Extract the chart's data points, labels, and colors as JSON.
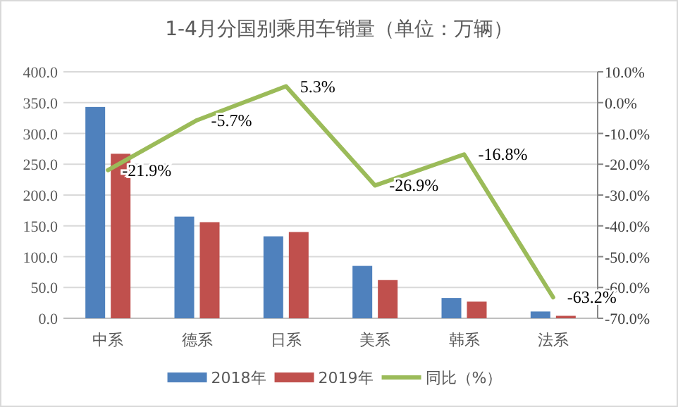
{
  "chart_data": {
    "type": "bar",
    "title": "1-4月分国别乘用车销量（单位：万辆）",
    "categories": [
      "中系",
      "德系",
      "日系",
      "美系",
      "韩系",
      "法系"
    ],
    "series": [
      {
        "name": "2018年",
        "color": "#4f81bd",
        "values": [
          343,
          165,
          133,
          85,
          33,
          11
        ]
      },
      {
        "name": "2019年",
        "color": "#c0504d",
        "values": [
          267,
          156,
          140,
          62,
          27,
          4
        ]
      },
      {
        "name": "同比（%）",
        "type": "line",
        "axis": "y2",
        "color": "#9bbb59",
        "values": [
          -21.9,
          -5.7,
          5.3,
          -26.9,
          -16.8,
          -63.2
        ],
        "value_labels": [
          "-21.9%",
          "-5.7%",
          "5.3%",
          "-26.9%",
          "-16.8%",
          "-63.2%"
        ]
      }
    ],
    "ylim": [
      0,
      400
    ],
    "yticks": [
      {
        "value": 0,
        "label": "0.0"
      },
      {
        "value": 50,
        "label": "50.0"
      },
      {
        "value": 100,
        "label": "100.0"
      },
      {
        "value": 150,
        "label": "150.0"
      },
      {
        "value": 200,
        "label": "200.0"
      },
      {
        "value": 250,
        "label": "250.0"
      },
      {
        "value": 300,
        "label": "300.0"
      },
      {
        "value": 350,
        "label": "350.0"
      },
      {
        "value": 400,
        "label": "400.0"
      }
    ],
    "y2lim": [
      -70,
      10
    ],
    "y2ticks": [
      {
        "value": 10,
        "label": "10.0%"
      },
      {
        "value": 0,
        "label": "0.0%"
      },
      {
        "value": -10,
        "label": "-10.0%"
      },
      {
        "value": -20,
        "label": "-20.0%"
      },
      {
        "value": -30,
        "label": "-30.0%"
      },
      {
        "value": -40,
        "label": "-40.0%"
      },
      {
        "value": -50,
        "label": "-50.0%"
      },
      {
        "value": -60,
        "label": "-60.0%"
      },
      {
        "value": -70,
        "label": "-70.0%"
      }
    ],
    "grid": "y",
    "legend": "bottom"
  }
}
